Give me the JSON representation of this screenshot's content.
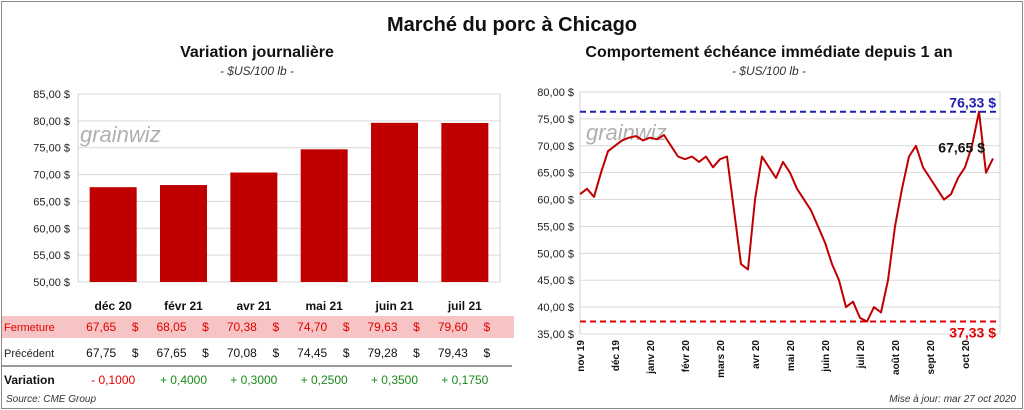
{
  "title": "Marché du porc à Chicago",
  "source": "Source: CME Group",
  "updated": "Mise à jour: mar 27 oct 2020",
  "watermark": "grainwiz",
  "colors": {
    "bar": "#c00000",
    "line": "#c00000",
    "high": "#1f1fb0",
    "low": "#e00000",
    "neg": "#e00000",
    "pos": "#1a8a1a",
    "close_row_bg": "#f6c4c4"
  },
  "table": {
    "row_close_label": "Fermeture",
    "row_prev_label": "Précédent",
    "row_var_label": "Variation",
    "currency": "$",
    "close": [
      "67,65",
      "68,05",
      "70,38",
      "74,70",
      "79,63",
      "79,60"
    ],
    "prev": [
      "67,75",
      "67,65",
      "70,08",
      "74,45",
      "79,28",
      "79,43"
    ],
    "variation": [
      "- 0,1000",
      "+ 0,4000",
      "+ 0,3000",
      "+ 0,2500",
      "+ 0,3500",
      "+ 0,1750"
    ]
  },
  "chart_data": [
    {
      "type": "bar",
      "title": "Variation journalière",
      "subtitle": "- $US/100 lb -",
      "categories": [
        "déc 20",
        "févr 21",
        "avr 21",
        "mai 21",
        "juin 21",
        "juil 21"
      ],
      "values": [
        67.65,
        68.05,
        70.38,
        74.7,
        79.63,
        79.6
      ],
      "ylim": [
        50,
        85
      ],
      "yticks": [
        "50,00 $",
        "55,00 $",
        "60,00 $",
        "65,00 $",
        "70,00 $",
        "75,00 $",
        "80,00 $",
        "85,00 $"
      ],
      "grid": true
    },
    {
      "type": "line",
      "title": "Comportement échéance immédiate depuis 1 an",
      "subtitle": "- $US/100 lb -",
      "ylim": [
        35,
        80
      ],
      "yticks": [
        "35,00 $",
        "40,00 $",
        "45,00 $",
        "50,00 $",
        "55,00 $",
        "60,00 $",
        "65,00 $",
        "70,00 $",
        "75,00 $",
        "80,00 $"
      ],
      "xticks": [
        "nov 19",
        "déc 19",
        "janv 20",
        "févr 20",
        "mars 20",
        "avr 20",
        "mai 20",
        "juin 20",
        "juil 20",
        "août 20",
        "sept 20",
        "oct 20"
      ],
      "high_label": "76,33 $",
      "low_label": "37,33 $",
      "last_label": "67,65 $",
      "high": 76.33,
      "low": 37.33,
      "grid": true,
      "x": [
        0,
        0.2,
        0.4,
        0.6,
        0.8,
        1,
        1.2,
        1.4,
        1.6,
        1.8,
        2,
        2.2,
        2.4,
        2.6,
        2.8,
        3,
        3.2,
        3.4,
        3.6,
        3.8,
        4,
        4.2,
        4.4,
        4.6,
        4.8,
        5,
        5.2,
        5.4,
        5.6,
        5.8,
        6,
        6.2,
        6.4,
        6.6,
        6.8,
        7,
        7.2,
        7.4,
        7.6,
        7.8,
        8,
        8.2,
        8.4,
        8.6,
        8.8,
        9,
        9.2,
        9.4,
        9.6,
        9.8,
        10,
        10.2,
        10.4,
        10.6,
        10.8,
        11,
        11.2,
        11.4,
        11.6,
        11.8
      ],
      "values": [
        61,
        62,
        60.5,
        65,
        69,
        70,
        71,
        71.5,
        71.8,
        71,
        71.5,
        71.2,
        72,
        70,
        68,
        67.5,
        68,
        67,
        68,
        66,
        67.5,
        68,
        58,
        48,
        47,
        60,
        68,
        66,
        64,
        67,
        65,
        62,
        60,
        58,
        55,
        52,
        48,
        45,
        40,
        41,
        38,
        37.33,
        40,
        39,
        45,
        55,
        62,
        68,
        70,
        66,
        64,
        62,
        60,
        61,
        64,
        66,
        70,
        76.33,
        65,
        67.65
      ]
    }
  ]
}
